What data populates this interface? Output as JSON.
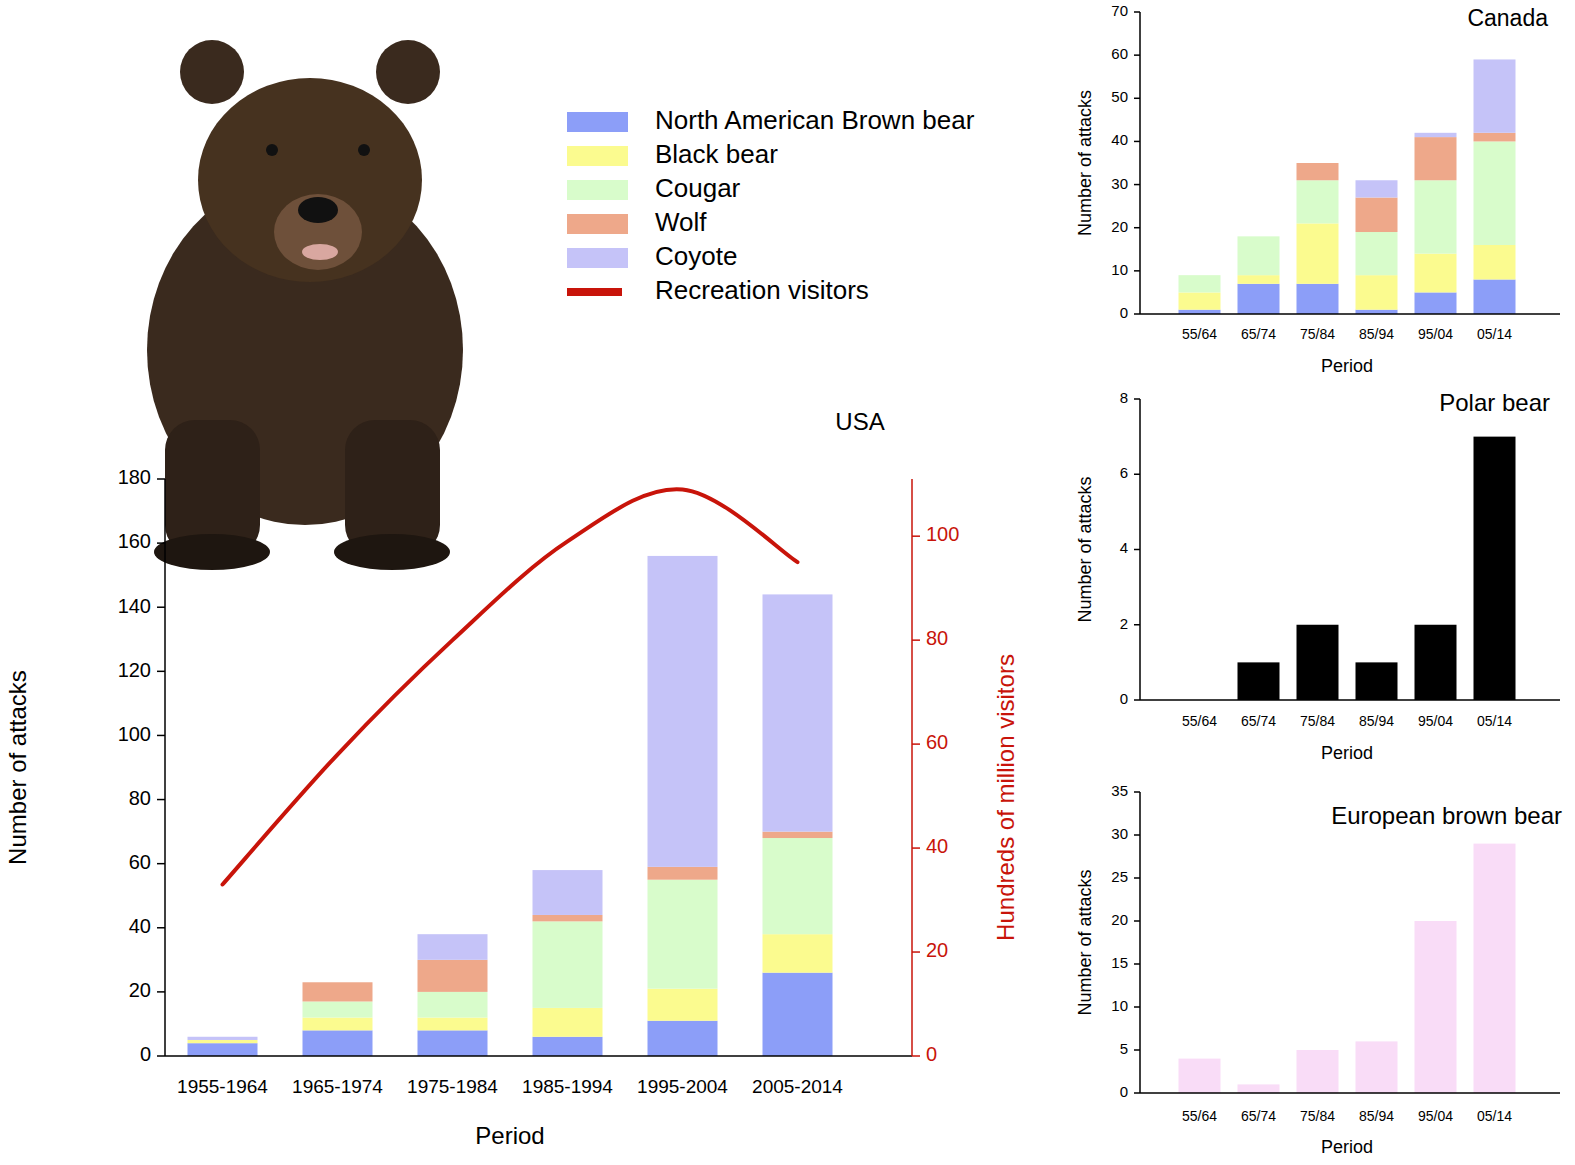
{
  "chart_data": [
    {
      "type": "bar",
      "title": "USA",
      "stacked": true,
      "legend": "top",
      "x_label": "Period",
      "y_label": "Number of attacks",
      "y2_label": "Hundreds of million visitors",
      "categories": [
        "1955-1964",
        "1965-1974",
        "1975-1984",
        "1985-1994",
        "1995-2004",
        "2005-2014"
      ],
      "ylim": [
        0,
        180
      ],
      "yticks": [
        0,
        20,
        40,
        60,
        80,
        100,
        120,
        140,
        160,
        180
      ],
      "y2lim": [
        0,
        111
      ],
      "y2ticks": [
        0,
        20,
        40,
        60,
        80,
        100
      ],
      "series": [
        {
          "name": "North American Brown bear",
          "color": "#8c9ef8",
          "values": [
            4,
            8,
            8,
            6,
            11,
            26
          ]
        },
        {
          "name": "Black bear",
          "color": "#fbfb8f",
          "values": [
            1,
            4,
            4,
            9,
            10,
            12
          ]
        },
        {
          "name": "Cougar",
          "color": "#d8fccb",
          "values": [
            0,
            5,
            8,
            27,
            34,
            30
          ]
        },
        {
          "name": "Wolf",
          "color": "#eea88a",
          "values": [
            0,
            6,
            10,
            2,
            4,
            2
          ]
        },
        {
          "name": "Coyote",
          "color": "#c5c3f8",
          "values": [
            1,
            0,
            8,
            14,
            97,
            74
          ]
        },
        {
          "name": "Recreation visitors",
          "type": "line",
          "axis": "y2",
          "color": "#c8140a",
          "values": [
            33,
            58,
            80,
            99,
            109,
            95
          ]
        }
      ]
    },
    {
      "type": "bar",
      "title": "Canada",
      "stacked": true,
      "x_label": "Period",
      "y_label": "Number of attacks",
      "categories": [
        "55/64",
        "65/74",
        "75/84",
        "85/94",
        "95/04",
        "05/14"
      ],
      "ylim": [
        0,
        70
      ],
      "yticks": [
        0,
        10,
        20,
        30,
        40,
        50,
        60,
        70
      ],
      "series": [
        {
          "color": "#8c9ef8",
          "values": [
            1,
            7,
            7,
            1,
            5,
            8
          ]
        },
        {
          "color": "#fbfb8f",
          "values": [
            4,
            2,
            14,
            8,
            9,
            8
          ]
        },
        {
          "color": "#d8fccb",
          "values": [
            4,
            9,
            10,
            10,
            17,
            24
          ]
        },
        {
          "color": "#eea88a",
          "values": [
            0,
            0,
            4,
            8,
            10,
            2
          ]
        },
        {
          "color": "#c5c3f8",
          "values": [
            0,
            0,
            0,
            4,
            1,
            17
          ]
        }
      ]
    },
    {
      "type": "bar",
      "title": "Polar bear",
      "x_label": "Period",
      "y_label": "Number of attacks",
      "categories": [
        "55/64",
        "65/74",
        "75/84",
        "85/94",
        "95/04",
        "05/14"
      ],
      "ylim": [
        0,
        8
      ],
      "yticks": [
        0,
        2,
        4,
        6,
        8
      ],
      "color": "#000000",
      "values": [
        0,
        1,
        2,
        1,
        2,
        7
      ]
    },
    {
      "type": "bar",
      "title": "European brown bear",
      "x_label": "Period",
      "y_label": "Number of attacks",
      "categories": [
        "55/64",
        "65/74",
        "75/84",
        "85/94",
        "95/04",
        "05/14"
      ],
      "ylim": [
        0,
        35
      ],
      "yticks": [
        0,
        5,
        10,
        15,
        20,
        25,
        30,
        35
      ],
      "color": "#f9dcf7",
      "values": [
        4,
        1,
        5,
        6,
        20,
        29
      ]
    }
  ]
}
